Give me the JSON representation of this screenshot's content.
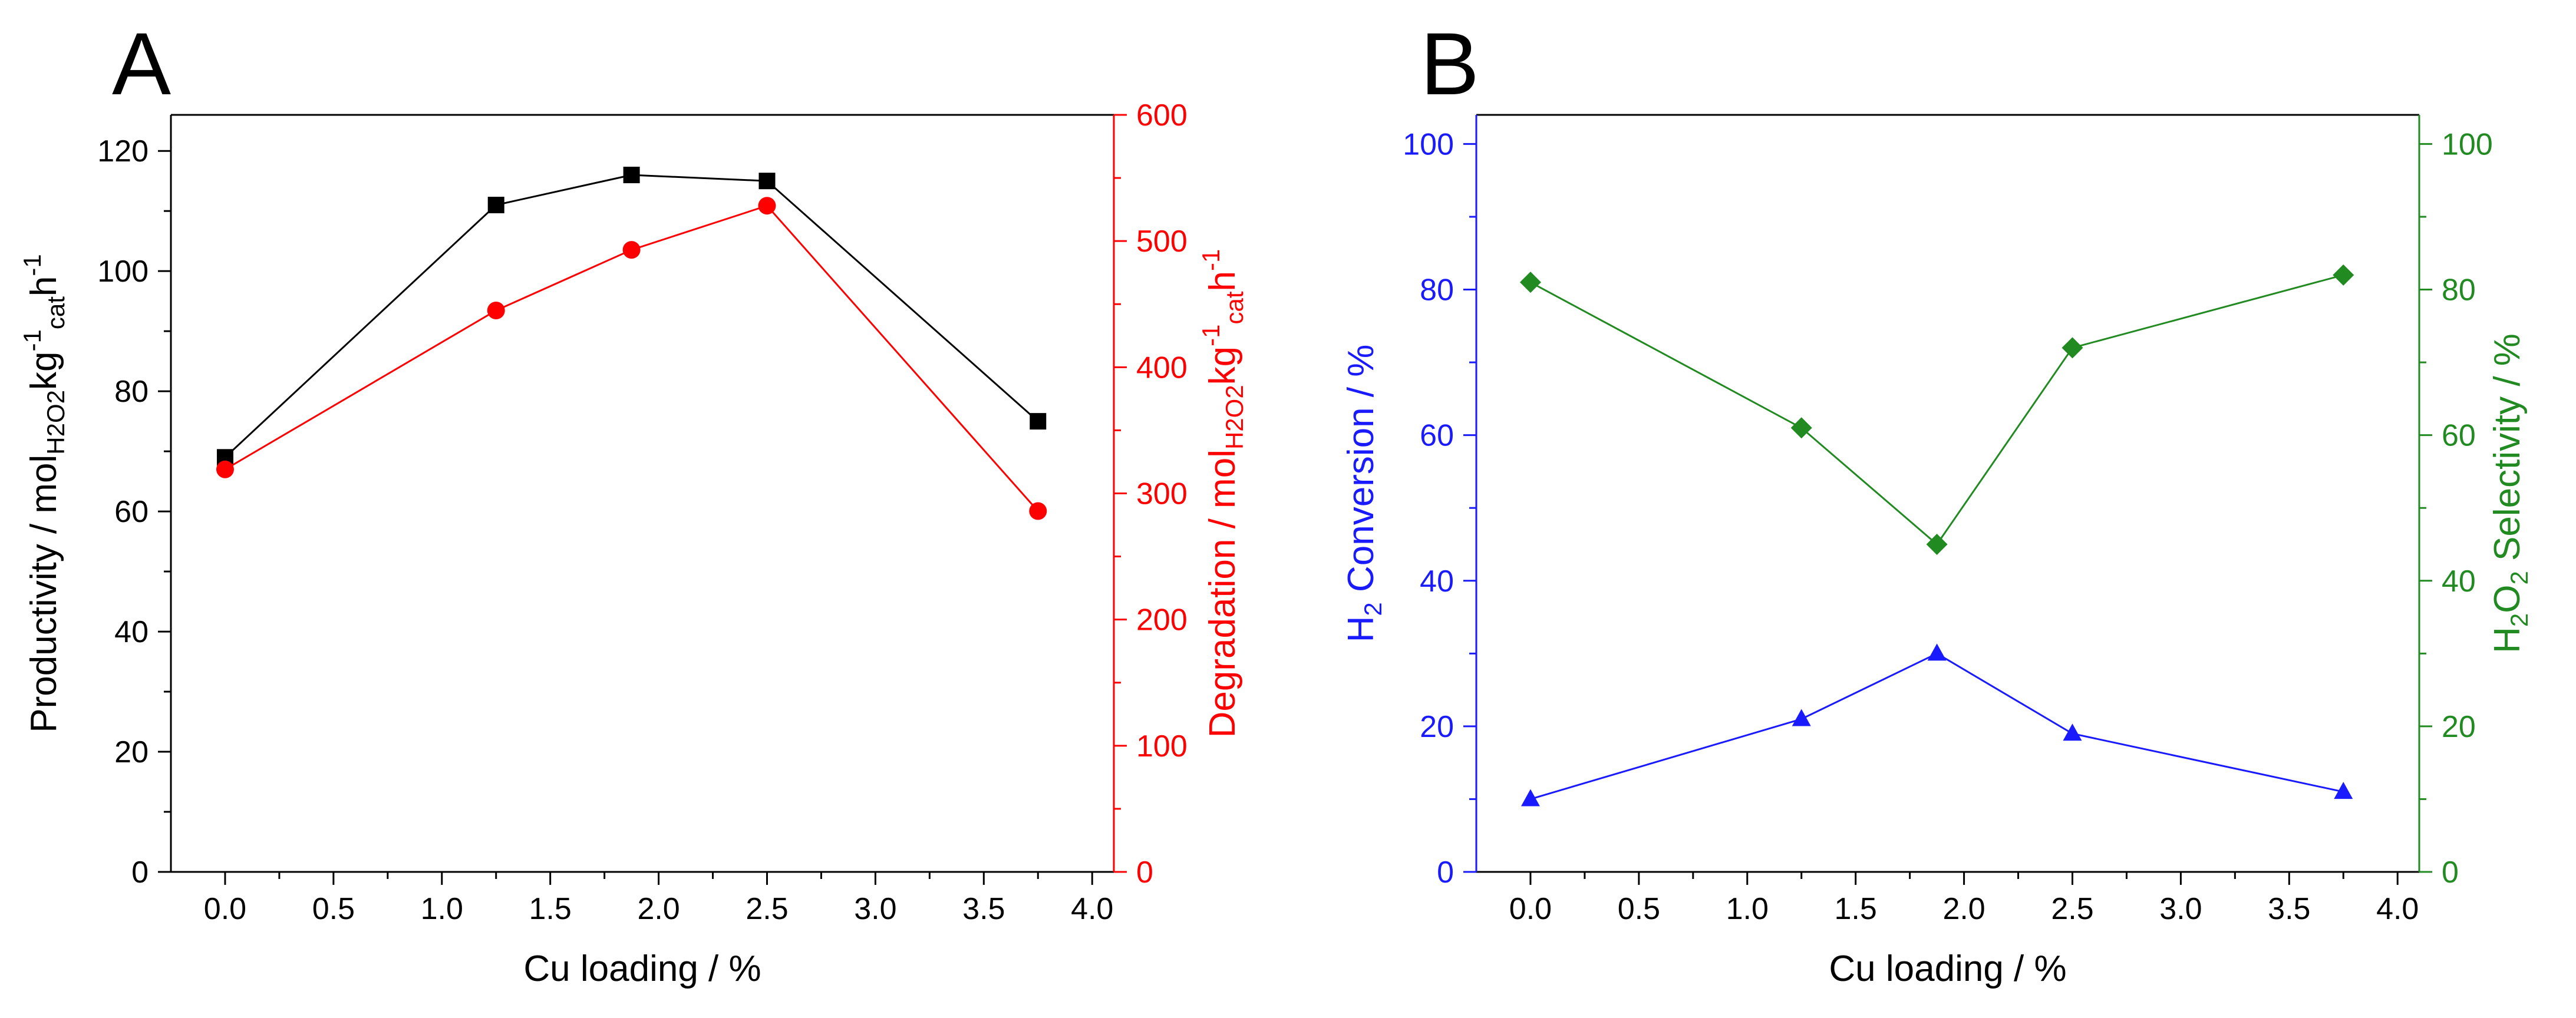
{
  "chart_data": [
    {
      "panel_label": "A",
      "type": "line",
      "xlabel": "Cu loading / %",
      "xlim": [
        -0.25,
        4.1
      ],
      "xticks": [
        0.0,
        0.5,
        1.0,
        1.5,
        2.0,
        2.5,
        3.0,
        3.5,
        4.0
      ],
      "xtick_labels": [
        "0.0",
        "0.5",
        "1.0",
        "1.5",
        "2.0",
        "2.5",
        "3.0",
        "3.5",
        "4.0"
      ],
      "y_left": {
        "label_parts": {
          "pre": "Productivity / mol",
          "sub1": "H2O2",
          "mid1": "kg",
          "sup1": "-1",
          "sub2": "cat",
          "mid2": "h",
          "sup2": "-1"
        },
        "ylim": [
          0,
          126
        ],
        "ticks": [
          0,
          20,
          40,
          60,
          80,
          100,
          120
        ],
        "tick_labels": [
          "0",
          "20",
          "40",
          "60",
          "80",
          "100",
          "120"
        ],
        "color": "#000000"
      },
      "y_right": {
        "label_parts": {
          "pre": "Degradation / mol",
          "sub1": "H2O2",
          "mid1": "kg",
          "sup1": "-1",
          "sub2": "cat",
          "mid2": "h",
          "sup2": "-1"
        },
        "ylim": [
          0,
          600
        ],
        "ticks": [
          0,
          100,
          200,
          300,
          400,
          500,
          600
        ],
        "tick_labels": [
          "0",
          "100",
          "200",
          "300",
          "400",
          "500",
          "600"
        ],
        "color": "#ff0000"
      },
      "series": [
        {
          "name": "Productivity",
          "axis": "left",
          "marker": "square",
          "color": "#000000",
          "x": [
            0.0,
            1.25,
            1.875,
            2.5,
            3.75
          ],
          "y": [
            69,
            111,
            116,
            115,
            75
          ]
        },
        {
          "name": "Degradation",
          "axis": "right",
          "marker": "circle",
          "color": "#ff0000",
          "x": [
            0.0,
            1.25,
            1.875,
            2.5,
            3.75
          ],
          "y": [
            319,
            445,
            493,
            528,
            286
          ]
        }
      ]
    },
    {
      "panel_label": "B",
      "type": "line",
      "xlabel": "Cu loading / %",
      "xlim": [
        -0.25,
        4.1
      ],
      "xticks": [
        0.0,
        0.5,
        1.0,
        1.5,
        2.0,
        2.5,
        3.0,
        3.5,
        4.0
      ],
      "xtick_labels": [
        "0.0",
        "0.5",
        "1.0",
        "1.5",
        "2.0",
        "2.5",
        "3.0",
        "3.5",
        "4.0"
      ],
      "y_left": {
        "label_parts": {
          "pre": "H",
          "sub1": "2",
          "post": " Conversion / %"
        },
        "ylim": [
          0,
          104
        ],
        "ticks": [
          0,
          20,
          40,
          60,
          80,
          100
        ],
        "tick_labels": [
          "0",
          "20",
          "40",
          "60",
          "80",
          "100"
        ],
        "color": "#1a1aff"
      },
      "y_right": {
        "label_parts": {
          "pre": "H",
          "sub1": "2",
          "mid": "O",
          "sub2": "2",
          "post": " Selectivity / %"
        },
        "ylim": [
          0,
          104
        ],
        "ticks": [
          0,
          20,
          40,
          60,
          80,
          100
        ],
        "tick_labels": [
          "0",
          "20",
          "40",
          "60",
          "80",
          "100"
        ],
        "color": "#218a21"
      },
      "series": [
        {
          "name": "H2 Conversion",
          "axis": "left",
          "marker": "triangle",
          "color": "#1a1aff",
          "x": [
            0.0,
            1.25,
            1.875,
            2.5,
            3.75
          ],
          "y": [
            10,
            21,
            30,
            19,
            11
          ]
        },
        {
          "name": "H2O2 Selectivity",
          "axis": "right",
          "marker": "diamond",
          "color": "#218a21",
          "x": [
            0.0,
            1.25,
            1.875,
            2.5,
            3.75
          ],
          "y": [
            81,
            61,
            45,
            72,
            82
          ]
        }
      ]
    }
  ]
}
